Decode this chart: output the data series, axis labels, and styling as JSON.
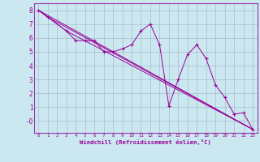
{
  "xlabel": "Windchill (Refroidissement éolien,°C)",
  "bg_color": "#cbe8f0",
  "line_color": "#990099",
  "grid_color": "#aabbcc",
  "spine_color": "#9933aa",
  "xlim": [
    -0.5,
    23.5
  ],
  "ylim": [
    -0.85,
    8.5
  ],
  "yticks": [
    0,
    1,
    2,
    3,
    4,
    5,
    6,
    7,
    8
  ],
  "ytick_labels": [
    "-0",
    "1",
    "2",
    "3",
    "4",
    "5",
    "6",
    "7",
    "8"
  ],
  "xticks": [
    0,
    1,
    2,
    3,
    4,
    5,
    6,
    7,
    8,
    9,
    10,
    11,
    12,
    13,
    14,
    15,
    16,
    17,
    18,
    19,
    20,
    21,
    22,
    23
  ],
  "series1_x": [
    0,
    1,
    3,
    4,
    5,
    6,
    7,
    8,
    9,
    10,
    11,
    12,
    13,
    14,
    15,
    16,
    17,
    18,
    19,
    20,
    21,
    22,
    23
  ],
  "series1_y": [
    8.0,
    7.5,
    6.5,
    5.8,
    5.8,
    5.8,
    5.0,
    5.0,
    5.2,
    5.5,
    6.5,
    7.0,
    5.5,
    1.1,
    3.0,
    4.8,
    5.5,
    4.5,
    2.6,
    1.7,
    0.5,
    0.6,
    -0.6
  ],
  "series2_x": [
    0,
    23
  ],
  "series2_y": [
    8.0,
    -0.6
  ],
  "series3_x": [
    0,
    1,
    23
  ],
  "series3_y": [
    8.0,
    7.5,
    -0.6
  ],
  "series4_x": [
    0,
    3,
    23
  ],
  "series4_y": [
    8.0,
    6.5,
    -0.6
  ]
}
